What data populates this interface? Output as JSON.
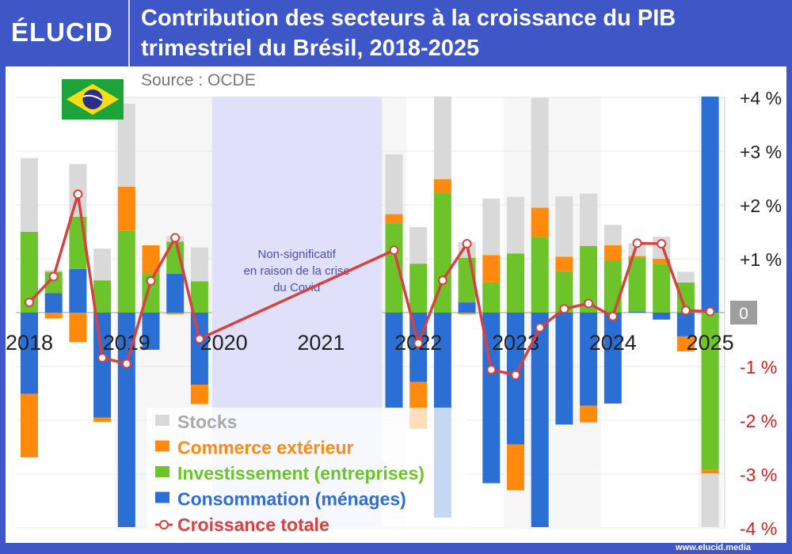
{
  "header": {
    "logo": "ÉLUCID",
    "title_line1": "Contribution des secteurs à la croissance du PIB",
    "title_line2": "trimestriel du Brésil, 2018-2025",
    "source": "Source : OCDE",
    "footer": "www.elucid.media"
  },
  "colors": {
    "frame": "#3f56c6",
    "stocks": "#d9d9d9",
    "commerce": "#ff8a0e",
    "investissement": "#6cc42a",
    "consommation": "#2c6fd4",
    "croissance": "#d8413f",
    "covid_band": "#e0e0fa"
  },
  "chart_data": {
    "type": "bar",
    "stacked": true,
    "ylim": [
      -4,
      4
    ],
    "yticks": [
      {
        "v": 4,
        "label": "+4 %"
      },
      {
        "v": 3,
        "label": "+3 %"
      },
      {
        "v": 2,
        "label": "+2 %"
      },
      {
        "v": 1,
        "label": "+1 %"
      },
      {
        "v": 0,
        "label": "0"
      },
      {
        "v": -1,
        "label": "-1 %"
      },
      {
        "v": -2,
        "label": "-2 %"
      },
      {
        "v": -3,
        "label": "-3 %"
      },
      {
        "v": -4,
        "label": "-4 %"
      }
    ],
    "xticks": [
      "2018",
      "2019",
      "2020",
      "2021",
      "2022",
      "2023",
      "2024",
      "2025"
    ],
    "annotation": {
      "lines": [
        "Non-significatif",
        "en raison de la crise",
        "du Covid"
      ],
      "from": "2020T1",
      "to": "2021T3"
    },
    "legend": {
      "placement": "bottom-left",
      "items": [
        {
          "key": "stocks",
          "label": "Stocks"
        },
        {
          "key": "commerce",
          "label": "Commerce extérieur"
        },
        {
          "key": "investissement",
          "label": "Investissement (entreprises)"
        },
        {
          "key": "consommation",
          "label": "Consommation (ménages)"
        },
        {
          "key": "croissance",
          "label": "Croissance totale"
        }
      ]
    },
    "quarters": [
      "2018T1",
      "2018T2",
      "2018T3",
      "2018T4",
      "2019T1",
      "2019T2",
      "2019T3",
      "2019T4",
      "2020T1",
      "2020T2",
      "2020T3",
      "2020T4",
      "2021T1",
      "2021T2",
      "2021T3",
      "2021T4",
      "2022T1",
      "2022T2",
      "2022T3",
      "2022T4",
      "2023T1",
      "2023T2",
      "2023T3",
      "2023T4",
      "2024T1",
      "2024T2",
      "2024T3",
      "2024T4",
      "2025T1"
    ],
    "series": {
      "consommation": [
        -1.51,
        0.36,
        0.81,
        -1.95,
        -4.2,
        -0.69,
        0.72,
        -1.34,
        null,
        null,
        null,
        null,
        null,
        null,
        null,
        -1.77,
        -1.29,
        -3.81,
        0.19,
        -3.17,
        -2.45,
        -4.2,
        -2.08,
        -1.73,
        -1.69,
        0.02,
        -0.13,
        -0.44,
        4.2
      ],
      "investissement": [
        1.5,
        0.4,
        0.97,
        0.6,
        1.52,
        0.72,
        0.6,
        0.58,
        null,
        null,
        null,
        null,
        null,
        null,
        null,
        1.66,
        0.91,
        2.22,
        0.83,
        0.56,
        1.1,
        1.41,
        0.77,
        1.24,
        0.97,
        1.0,
        0.9,
        0.56,
        -2.92
      ],
      "commerce": [
        -1.18,
        -0.11,
        -0.55,
        -0.08,
        0.82,
        0.53,
        -0.03,
        -0.36,
        null,
        null,
        null,
        null,
        null,
        null,
        null,
        0.17,
        -0.87,
        0.26,
        -0.03,
        0.51,
        -0.85,
        0.54,
        0.27,
        -0.31,
        0.28,
        0.03,
        0.1,
        -0.28,
        -0.07
      ],
      "stocks": [
        1.37,
        0.03,
        0.98,
        0.59,
        1.54,
        0,
        0.1,
        0.63,
        null,
        null,
        null,
        null,
        null,
        null,
        null,
        1.11,
        0.68,
        1.6,
        0.29,
        1.05,
        1.05,
        2.04,
        1.12,
        0.97,
        0.38,
        0.24,
        0.41,
        0.2,
        -1.2
      ],
      "croissance": [
        0.19,
        0.67,
        2.2,
        -0.84,
        -0.95,
        0.59,
        1.39,
        -0.49,
        null,
        null,
        null,
        null,
        null,
        null,
        null,
        1.16,
        -0.57,
        0.6,
        1.28,
        -1.06,
        -1.16,
        -0.28,
        0.07,
        0.17,
        -0.07,
        1.29,
        1.28,
        0.04,
        0.02
      ]
    }
  }
}
